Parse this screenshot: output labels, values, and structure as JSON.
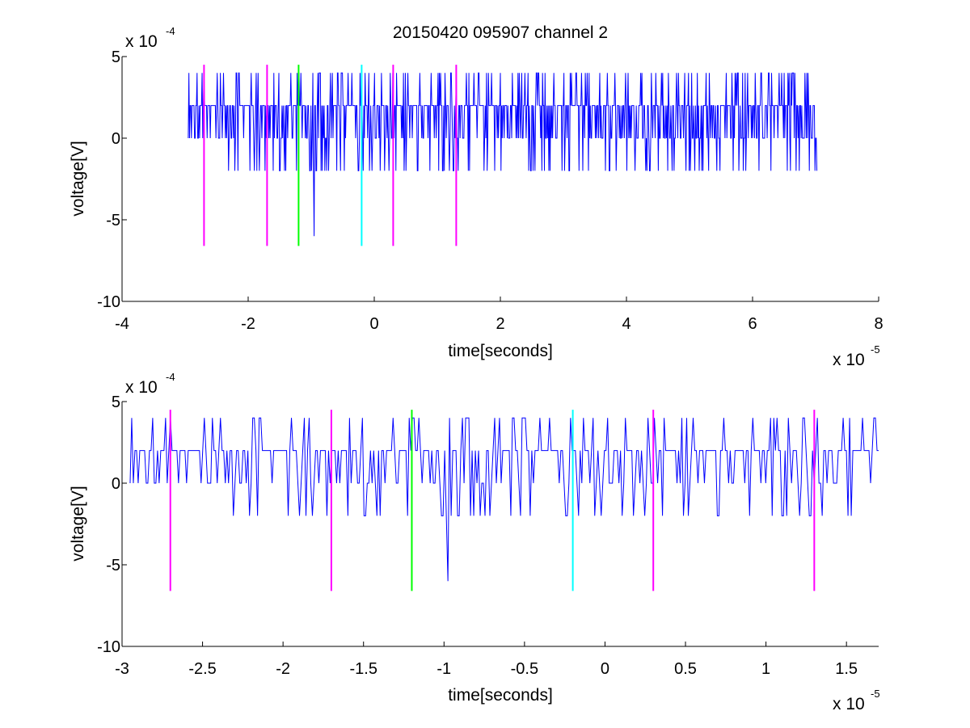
{
  "chart_data": [
    {
      "type": "line",
      "title": "20150420 095907 channel 2",
      "xlabel": "time[seconds]",
      "ylabel": "voltage[V]",
      "xlim": [
        -4,
        8
      ],
      "ylim": [
        -10,
        5
      ],
      "x_multiplier": "x 10",
      "x_exponent": "-5",
      "y_multiplier": "x 10",
      "y_exponent": "-4",
      "xticks": [
        -4,
        -2,
        0,
        2,
        4,
        6,
        8
      ],
      "xtick_labels": [
        "-4",
        "-2",
        "0",
        "2",
        "4",
        "6",
        "8"
      ],
      "yticks": [
        -10,
        -5,
        0,
        5
      ],
      "ytick_labels": [
        "-10",
        "-5",
        "0",
        "5"
      ],
      "grid": false,
      "series": [
        {
          "color": "#0000ff",
          "x_range": [
            -2.95,
            7.02
          ],
          "samples": 1000,
          "seed": 17,
          "levels": [
            -6,
            -2,
            0,
            2,
            4
          ],
          "spikes": [
            {
              "x": -0.95,
              "y": -6
            }
          ]
        }
      ],
      "markers": [
        {
          "x": -2.7,
          "y_range": [
            -6.6,
            4.5
          ],
          "color": "#ff00ff"
        },
        {
          "x": -1.7,
          "y_range": [
            -6.6,
            4.5
          ],
          "color": "#ff00ff"
        },
        {
          "x": -1.2,
          "y_range": [
            -6.6,
            4.5
          ],
          "color": "#00ff00"
        },
        {
          "x": -0.2,
          "y_range": [
            -6.6,
            4.5
          ],
          "color": "#00ffff"
        },
        {
          "x": 0.3,
          "y_range": [
            -6.6,
            4.5
          ],
          "color": "#ff00ff"
        },
        {
          "x": 1.3,
          "y_range": [
            -6.6,
            4.5
          ],
          "color": "#ff00ff"
        }
      ]
    },
    {
      "type": "line",
      "title": "",
      "xlabel": "time[seconds]",
      "ylabel": "voltage[V]",
      "xlim": [
        -3,
        1.7
      ],
      "ylim": [
        -10,
        5
      ],
      "x_multiplier": "x 10",
      "x_exponent": "-5",
      "y_multiplier": "x 10",
      "y_exponent": "-4",
      "xticks": [
        -3,
        -2.5,
        -2,
        -1.5,
        -1,
        -0.5,
        0,
        0.5,
        1,
        1.5
      ],
      "xtick_labels": [
        "-3",
        "-2.5",
        "-2",
        "-1.5",
        "-1",
        "-0.5",
        "0",
        "0.5",
        "1",
        "1.5"
      ],
      "yticks": [
        -10,
        -5,
        0,
        5
      ],
      "ytick_labels": [
        "-10",
        "-5",
        "0",
        "5"
      ],
      "grid": false,
      "series": [
        {
          "color": "#0000ff",
          "x_range": [
            -2.95,
            1.7
          ],
          "samples": 465,
          "seed": 17,
          "levels": [
            -6,
            -2,
            0,
            2,
            4
          ],
          "spikes": [
            {
              "x": -0.98,
              "y": -6
            }
          ]
        }
      ],
      "markers": [
        {
          "x": -2.7,
          "y_range": [
            -6.6,
            4.5
          ],
          "color": "#ff00ff"
        },
        {
          "x": -1.7,
          "y_range": [
            -6.6,
            4.5
          ],
          "color": "#ff00ff"
        },
        {
          "x": -1.2,
          "y_range": [
            -6.6,
            4.5
          ],
          "color": "#00ff00"
        },
        {
          "x": -0.2,
          "y_range": [
            -6.6,
            4.5
          ],
          "color": "#00ffff"
        },
        {
          "x": 0.3,
          "y_range": [
            -6.6,
            4.5
          ],
          "color": "#ff00ff"
        },
        {
          "x": 1.3,
          "y_range": [
            -6.6,
            4.5
          ],
          "color": "#ff00ff"
        }
      ]
    }
  ]
}
